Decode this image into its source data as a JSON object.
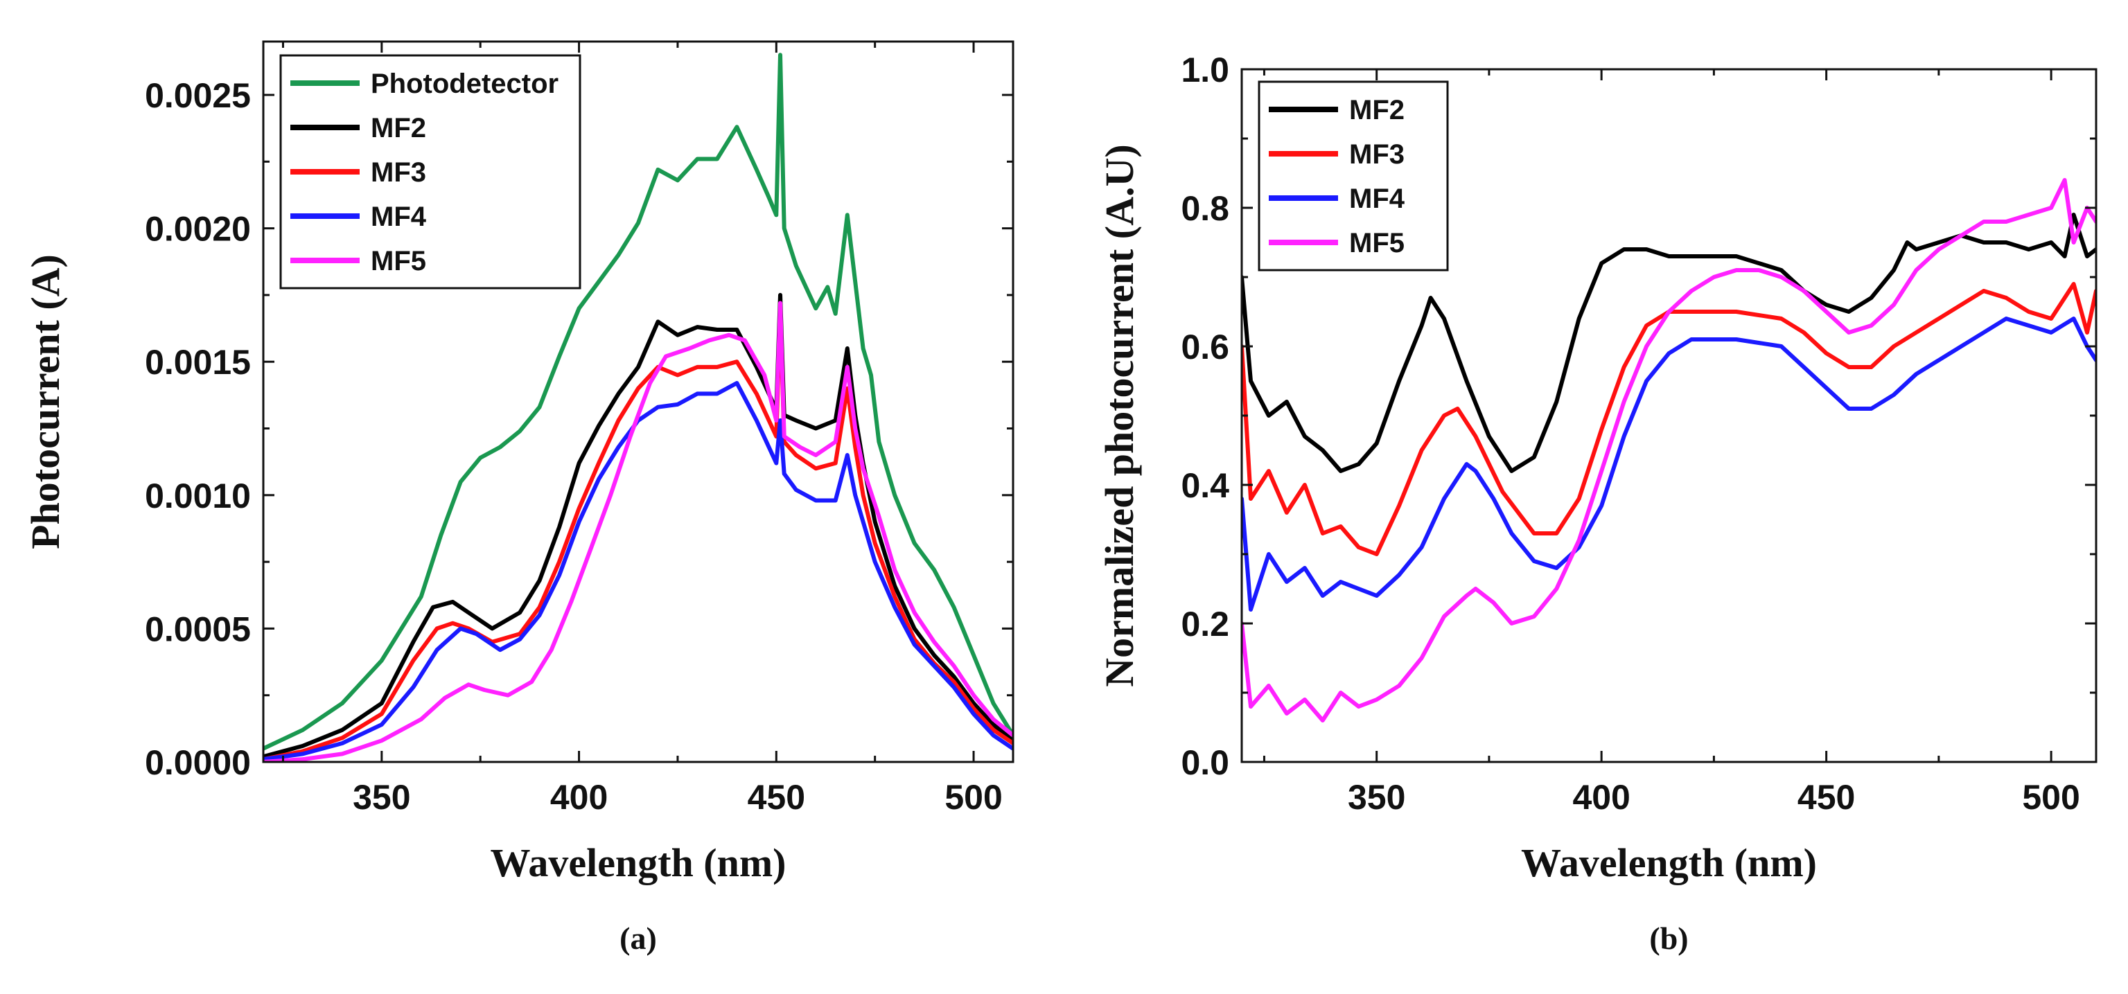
{
  "colors": {
    "photodetector": "#1a9850",
    "mf2": "#000000",
    "mf3": "#ff1010",
    "mf4": "#1a1aff",
    "mf5": "#ff22ff"
  },
  "chart_data": [
    {
      "id": "a",
      "type": "line",
      "caption": "(a)",
      "xlabel": "Wavelength (nm)",
      "ylabel": "Photocurrent (A)",
      "xlim": [
        320,
        510
      ],
      "ylim": [
        0,
        0.0027
      ],
      "xticks": [
        350,
        400,
        450,
        500
      ],
      "xtick_labels": [
        "350",
        "400",
        "450",
        "500"
      ],
      "yticks": [
        0,
        0.0005,
        0.001,
        0.0015,
        0.002,
        0.0025
      ],
      "ytick_labels": [
        "0.0000",
        "0.0005",
        "0.0010",
        "0.0015",
        "0.0020",
        "0.0025"
      ],
      "legend": "top-left",
      "series": [
        {
          "name": "Photodetector",
          "color_key": "photodetector",
          "x": [
            320,
            330,
            340,
            350,
            360,
            365,
            370,
            375,
            380,
            385,
            390,
            395,
            400,
            405,
            410,
            415,
            420,
            425,
            430,
            435,
            440,
            445,
            448,
            450,
            451,
            452,
            455,
            460,
            463,
            465,
            468,
            470,
            472,
            474,
            476,
            480,
            485,
            490,
            495,
            500,
            505,
            510
          ],
          "y": [
            5e-05,
            0.00012,
            0.00022,
            0.00038,
            0.00062,
            0.00085,
            0.00105,
            0.00114,
            0.00118,
            0.00124,
            0.00133,
            0.00152,
            0.0017,
            0.0018,
            0.0019,
            0.00202,
            0.00222,
            0.00218,
            0.00226,
            0.00226,
            0.00238,
            0.00222,
            0.00212,
            0.00205,
            0.00265,
            0.002,
            0.00186,
            0.0017,
            0.00178,
            0.00168,
            0.00205,
            0.0018,
            0.00155,
            0.00145,
            0.0012,
            0.001,
            0.00082,
            0.00072,
            0.00058,
            0.0004,
            0.00022,
            0.0001
          ]
        },
        {
          "name": "MF2",
          "color_key": "mf2",
          "x": [
            320,
            330,
            340,
            350,
            358,
            363,
            368,
            372,
            378,
            385,
            390,
            395,
            400,
            405,
            410,
            415,
            420,
            425,
            430,
            435,
            440,
            445,
            450,
            451,
            452,
            455,
            460,
            465,
            468,
            470,
            472,
            475,
            480,
            485,
            490,
            495,
            500,
            505,
            510
          ],
          "y": [
            2e-05,
            6e-05,
            0.00012,
            0.00022,
            0.00045,
            0.00058,
            0.0006,
            0.00056,
            0.0005,
            0.00056,
            0.00068,
            0.00088,
            0.00112,
            0.00126,
            0.00138,
            0.00148,
            0.00165,
            0.0016,
            0.00163,
            0.00162,
            0.00162,
            0.00148,
            0.00132,
            0.00175,
            0.0013,
            0.00128,
            0.00125,
            0.00128,
            0.00155,
            0.0013,
            0.00112,
            0.0009,
            0.00066,
            0.0005,
            0.0004,
            0.00032,
            0.00022,
            0.00014,
            8e-05
          ]
        },
        {
          "name": "MF3",
          "color_key": "mf3",
          "x": [
            320,
            330,
            340,
            350,
            358,
            364,
            368,
            372,
            378,
            385,
            390,
            395,
            400,
            405,
            410,
            415,
            420,
            425,
            430,
            435,
            440,
            445,
            450,
            451,
            452,
            455,
            460,
            465,
            468,
            470,
            472,
            475,
            480,
            485,
            490,
            495,
            500,
            505,
            510
          ],
          "y": [
            1e-05,
            4e-05,
            9e-05,
            0.00018,
            0.00038,
            0.0005,
            0.00052,
            0.0005,
            0.00045,
            0.00048,
            0.00058,
            0.00075,
            0.00095,
            0.00112,
            0.00128,
            0.0014,
            0.00148,
            0.00145,
            0.00148,
            0.00148,
            0.0015,
            0.00138,
            0.00122,
            0.0017,
            0.0012,
            0.00115,
            0.0011,
            0.00112,
            0.0014,
            0.00118,
            0.001,
            0.00082,
            0.00062,
            0.00046,
            0.00037,
            0.0003,
            0.0002,
            0.00012,
            7e-05
          ]
        },
        {
          "name": "MF4",
          "color_key": "mf4",
          "x": [
            320,
            330,
            340,
            350,
            358,
            364,
            370,
            374,
            380,
            385,
            390,
            395,
            400,
            405,
            410,
            415,
            420,
            425,
            430,
            435,
            440,
            445,
            450,
            451,
            452,
            455,
            460,
            465,
            468,
            470,
            472,
            475,
            480,
            485,
            490,
            495,
            500,
            505,
            510
          ],
          "y": [
            1e-05,
            3e-05,
            7e-05,
            0.00014,
            0.00028,
            0.00042,
            0.0005,
            0.00048,
            0.00042,
            0.00046,
            0.00055,
            0.0007,
            0.0009,
            0.00106,
            0.00118,
            0.00128,
            0.00133,
            0.00134,
            0.00138,
            0.00138,
            0.00142,
            0.00128,
            0.00112,
            0.00128,
            0.00108,
            0.00102,
            0.00098,
            0.00098,
            0.00115,
            0.001,
            0.0009,
            0.00075,
            0.00058,
            0.00044,
            0.00036,
            0.00028,
            0.00018,
            0.0001,
            5e-05
          ]
        },
        {
          "name": "MF5",
          "color_key": "mf5",
          "x": [
            320,
            330,
            340,
            350,
            360,
            366,
            372,
            376,
            382,
            388,
            393,
            398,
            403,
            408,
            413,
            418,
            422,
            428,
            433,
            438,
            442,
            447,
            450,
            451,
            452,
            456,
            460,
            465,
            468,
            470,
            472,
            476,
            480,
            485,
            490,
            495,
            500,
            505,
            510
          ],
          "y": [
            0.0,
            1e-05,
            3e-05,
            8e-05,
            0.00016,
            0.00024,
            0.00029,
            0.00027,
            0.00025,
            0.0003,
            0.00042,
            0.0006,
            0.0008,
            0.001,
            0.00122,
            0.00142,
            0.00152,
            0.00155,
            0.00158,
            0.0016,
            0.00158,
            0.00145,
            0.00128,
            0.00172,
            0.00122,
            0.00118,
            0.00115,
            0.0012,
            0.00148,
            0.00125,
            0.0011,
            0.00092,
            0.00072,
            0.00056,
            0.00045,
            0.00036,
            0.00025,
            0.00016,
            0.0001
          ]
        }
      ]
    },
    {
      "id": "b",
      "type": "line",
      "caption": "(b)",
      "xlabel": "Wavelength (nm)",
      "ylabel": "Normalized photocurrent (A.U)",
      "xlim": [
        320,
        510
      ],
      "ylim": [
        0,
        1.0
      ],
      "xticks": [
        350,
        400,
        450,
        500
      ],
      "xtick_labels": [
        "350",
        "400",
        "450",
        "500"
      ],
      "yticks": [
        0,
        0.2,
        0.4,
        0.6,
        0.8,
        1.0
      ],
      "ytick_labels": [
        "0.0",
        "0.2",
        "0.4",
        "0.6",
        "0.8",
        "1.0"
      ],
      "legend": "top-left",
      "series": [
        {
          "name": "MF2",
          "color_key": "mf2",
          "x": [
            320,
            322,
            326,
            330,
            334,
            338,
            342,
            346,
            350,
            355,
            360,
            362,
            365,
            370,
            375,
            380,
            385,
            390,
            395,
            400,
            405,
            410,
            415,
            420,
            430,
            440,
            445,
            450,
            455,
            460,
            465,
            468,
            470,
            475,
            480,
            485,
            490,
            495,
            500,
            503,
            505,
            508,
            510
          ],
          "y": [
            0.7,
            0.55,
            0.5,
            0.52,
            0.47,
            0.45,
            0.42,
            0.43,
            0.46,
            0.55,
            0.63,
            0.67,
            0.64,
            0.55,
            0.47,
            0.42,
            0.44,
            0.52,
            0.64,
            0.72,
            0.74,
            0.74,
            0.73,
            0.73,
            0.73,
            0.71,
            0.68,
            0.66,
            0.65,
            0.67,
            0.71,
            0.75,
            0.74,
            0.75,
            0.76,
            0.75,
            0.75,
            0.74,
            0.75,
            0.73,
            0.79,
            0.73,
            0.74
          ]
        },
        {
          "name": "MF3",
          "color_key": "mf3",
          "x": [
            320,
            322,
            326,
            330,
            334,
            338,
            342,
            346,
            350,
            355,
            360,
            365,
            368,
            372,
            378,
            385,
            390,
            395,
            400,
            405,
            410,
            415,
            420,
            430,
            440,
            445,
            450,
            455,
            460,
            465,
            470,
            475,
            480,
            485,
            490,
            495,
            500,
            505,
            508,
            510
          ],
          "y": [
            0.6,
            0.38,
            0.42,
            0.36,
            0.4,
            0.33,
            0.34,
            0.31,
            0.3,
            0.37,
            0.45,
            0.5,
            0.51,
            0.47,
            0.39,
            0.33,
            0.33,
            0.38,
            0.48,
            0.57,
            0.63,
            0.65,
            0.65,
            0.65,
            0.64,
            0.62,
            0.59,
            0.57,
            0.57,
            0.6,
            0.62,
            0.64,
            0.66,
            0.68,
            0.67,
            0.65,
            0.64,
            0.69,
            0.62,
            0.68
          ]
        },
        {
          "name": "MF4",
          "color_key": "mf4",
          "x": [
            320,
            322,
            326,
            330,
            334,
            338,
            342,
            346,
            350,
            355,
            360,
            365,
            370,
            372,
            376,
            380,
            385,
            390,
            395,
            400,
            405,
            410,
            415,
            420,
            430,
            440,
            445,
            450,
            455,
            460,
            465,
            470,
            475,
            480,
            485,
            490,
            495,
            500,
            505,
            508,
            510
          ],
          "y": [
            0.38,
            0.22,
            0.3,
            0.26,
            0.28,
            0.24,
            0.26,
            0.25,
            0.24,
            0.27,
            0.31,
            0.38,
            0.43,
            0.42,
            0.38,
            0.33,
            0.29,
            0.28,
            0.31,
            0.37,
            0.47,
            0.55,
            0.59,
            0.61,
            0.61,
            0.6,
            0.57,
            0.54,
            0.51,
            0.51,
            0.53,
            0.56,
            0.58,
            0.6,
            0.62,
            0.64,
            0.63,
            0.62,
            0.64,
            0.6,
            0.58
          ]
        },
        {
          "name": "MF5",
          "color_key": "mf5",
          "x": [
            320,
            322,
            326,
            330,
            334,
            338,
            342,
            346,
            350,
            355,
            360,
            365,
            370,
            372,
            376,
            380,
            385,
            390,
            395,
            400,
            405,
            410,
            415,
            420,
            425,
            430,
            435,
            440,
            445,
            450,
            455,
            460,
            465,
            470,
            475,
            480,
            485,
            490,
            495,
            500,
            503,
            505,
            508,
            510
          ],
          "y": [
            0.2,
            0.08,
            0.11,
            0.07,
            0.09,
            0.06,
            0.1,
            0.08,
            0.09,
            0.11,
            0.15,
            0.21,
            0.24,
            0.25,
            0.23,
            0.2,
            0.21,
            0.25,
            0.32,
            0.42,
            0.52,
            0.6,
            0.65,
            0.68,
            0.7,
            0.71,
            0.71,
            0.7,
            0.68,
            0.65,
            0.62,
            0.63,
            0.66,
            0.71,
            0.74,
            0.76,
            0.78,
            0.78,
            0.79,
            0.8,
            0.84,
            0.75,
            0.8,
            0.78
          ]
        }
      ]
    }
  ]
}
